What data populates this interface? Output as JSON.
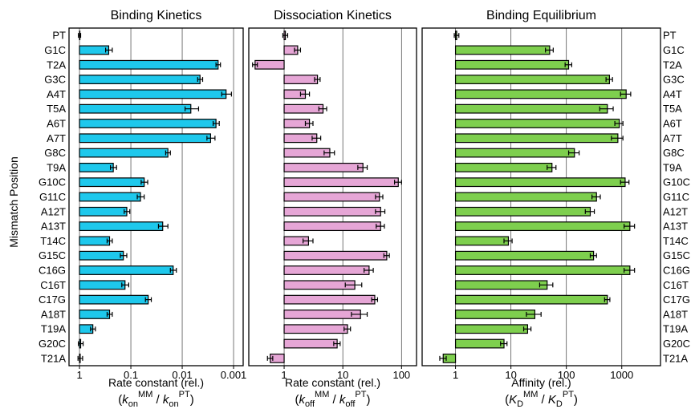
{
  "figure": {
    "ylabel": "Mismatch Position"
  },
  "colors": {
    "binding_kinetics": "#1ec8ec",
    "dissociation_kinetics": "#e6a6d6",
    "binding_equilibrium": "#7ecf4e",
    "bar_edge": "#000000",
    "gridline": "#555555"
  },
  "chart_data": [
    {
      "type": "bar",
      "orientation": "horizontal",
      "title": "Binding Kinetics",
      "xlabel_line1": "Rate constant (rel.)",
      "xlabel_line2_parts": [
        {
          "t": "(",
          "s": "n"
        },
        {
          "t": "k",
          "s": "i"
        },
        {
          "t": "on",
          "s": "sub"
        },
        {
          "t": "MM",
          "s": "sup"
        },
        {
          "t": " / ",
          "s": "n"
        },
        {
          "t": "k",
          "s": "i"
        },
        {
          "t": "on",
          "s": "sub"
        },
        {
          "t": "PT",
          "s": "sup"
        },
        {
          "t": ")",
          "s": "n"
        }
      ],
      "xscale": "log",
      "x_reversed": true,
      "xlim": [
        1.6,
        0.00065
      ],
      "xticks": [
        1,
        0.1,
        0.01,
        0.001
      ],
      "xticklabels": [
        "1",
        "0.1",
        "0.01",
        "0.001"
      ],
      "grid": "vertical",
      "category_labels_side": "left",
      "categories": [
        "PT",
        "G1C",
        "T2A",
        "G3C",
        "A4T",
        "T5A",
        "A6T",
        "A7T",
        "G8C",
        "T9A",
        "G10C",
        "G11C",
        "A12T",
        "A13T",
        "T14C",
        "G15C",
        "C16G",
        "C16T",
        "C17G",
        "A18T",
        "T19A",
        "G20C",
        "T21A"
      ],
      "values": [
        1,
        0.27,
        0.002,
        0.0045,
        0.0014,
        0.0068,
        0.0022,
        0.0028,
        0.019,
        0.22,
        0.055,
        0.065,
        0.12,
        0.024,
        0.26,
        0.14,
        0.015,
        0.13,
        0.046,
        0.26,
        0.55,
        0.95,
        0.97
      ],
      "errors": [
        0.05,
        0.04,
        0.0002,
        0.0005,
        0.0003,
        0.002,
        0.0003,
        0.0005,
        0.002,
        0.03,
        0.008,
        0.01,
        0.015,
        0.005,
        0.03,
        0.02,
        0.002,
        0.02,
        0.006,
        0.03,
        0.06,
        0.1,
        0.1
      ]
    },
    {
      "type": "bar",
      "orientation": "horizontal",
      "title": "Dissociation Kinetics",
      "xlabel_line1": "Rate constant (rel.)",
      "xlabel_line2_parts": [
        {
          "t": "(",
          "s": "n"
        },
        {
          "t": "k",
          "s": "i"
        },
        {
          "t": "off",
          "s": "sub"
        },
        {
          "t": "MM",
          "s": "sup"
        },
        {
          "t": " / ",
          "s": "n"
        },
        {
          "t": "k",
          "s": "i"
        },
        {
          "t": "off",
          "s": "sub"
        },
        {
          "t": "PT",
          "s": "sup"
        },
        {
          "t": ")",
          "s": "n"
        }
      ],
      "xscale": "log",
      "x_reversed": false,
      "xlim": [
        0.25,
        180
      ],
      "xticks": [
        1,
        10,
        100
      ],
      "xticklabels": [
        "1",
        "10",
        "100"
      ],
      "grid": "vertical",
      "category_labels_side": "none",
      "categories": [
        "PT",
        "G1C",
        "T2A",
        "G3C",
        "A4T",
        "T5A",
        "A6T",
        "A7T",
        "G8C",
        "T9A",
        "G10C",
        "G11C",
        "A12T",
        "A13T",
        "T14C",
        "G15C",
        "C16G",
        "C16T",
        "C17G",
        "A18T",
        "T19A",
        "G20C",
        "T21A"
      ],
      "values": [
        1.05,
        1.7,
        0.32,
        3.7,
        2.3,
        4.6,
        2.7,
        3.6,
        6,
        22,
        88,
        42,
        44,
        44,
        2.6,
        56,
        28,
        16,
        35,
        20,
        12,
        8,
        0.58
      ],
      "errors": [
        0.1,
        0.2,
        0.03,
        0.4,
        0.4,
        0.7,
        0.4,
        0.6,
        1.2,
        4,
        12,
        6,
        8,
        7,
        0.5,
        6,
        5,
        5,
        4,
        6,
        1.5,
        1,
        0.06
      ]
    },
    {
      "type": "bar",
      "orientation": "horizontal",
      "title": "Binding Equilibrium",
      "xlabel_line1": "Affinity (rel.)",
      "xlabel_line2_parts": [
        {
          "t": "(",
          "s": "n"
        },
        {
          "t": "K",
          "s": "i"
        },
        {
          "t": "D",
          "s": "sub"
        },
        {
          "t": "MM",
          "s": "sup"
        },
        {
          "t": " / ",
          "s": "n"
        },
        {
          "t": "K",
          "s": "i"
        },
        {
          "t": "D",
          "s": "sub"
        },
        {
          "t": "PT",
          "s": "sup"
        },
        {
          "t": ")",
          "s": "n"
        }
      ],
      "xscale": "log",
      "x_reversed": false,
      "xlim": [
        0.25,
        5000
      ],
      "xticks": [
        1,
        10,
        100,
        1000
      ],
      "xticklabels": [
        "1",
        "10",
        "100",
        "1000"
      ],
      "grid": "vertical",
      "category_labels_side": "right",
      "categories": [
        "PT",
        "G1C",
        "T2A",
        "G3C",
        "A4T",
        "T5A",
        "A6T",
        "A7T",
        "G8C",
        "T9A",
        "G10C",
        "G11C",
        "A12T",
        "A13T",
        "T14C",
        "G15C",
        "C16G",
        "C16T",
        "C17G",
        "A18T",
        "T19A",
        "G20C",
        "T21A"
      ],
      "values": [
        1.05,
        50,
        110,
        600,
        1200,
        550,
        900,
        850,
        140,
        55,
        1150,
        350,
        270,
        1400,
        9,
        310,
        1400,
        45,
        550,
        27,
        20,
        7.5,
        0.6
      ],
      "errors": [
        0.1,
        8,
        15,
        80,
        250,
        150,
        150,
        200,
        30,
        10,
        200,
        60,
        50,
        300,
        1.5,
        40,
        300,
        12,
        60,
        8,
        3,
        1,
        0.08
      ]
    }
  ]
}
